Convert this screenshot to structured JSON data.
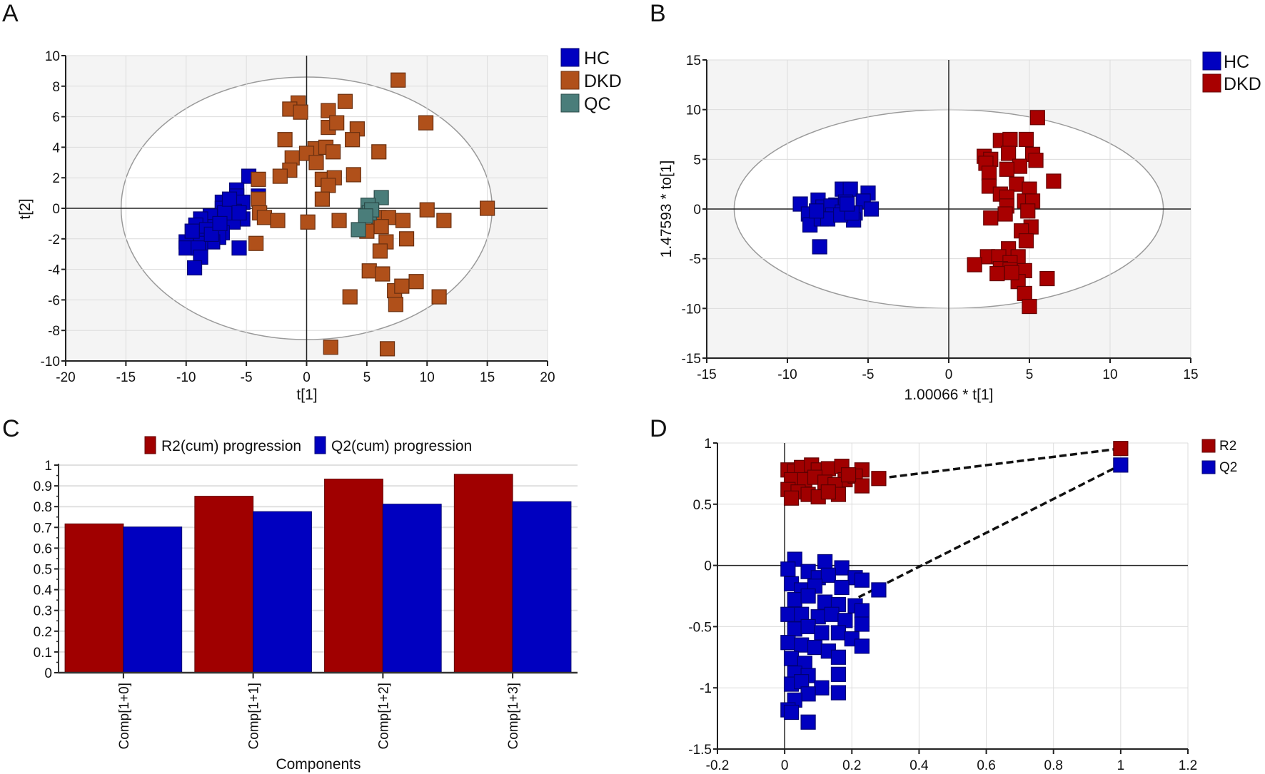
{
  "chart_data": [
    {
      "panel": "A",
      "type": "scatter",
      "xlabel": "t[1]",
      "ylabel": "t[2]",
      "xlim": [
        -20,
        20
      ],
      "ylim": [
        -10,
        10
      ],
      "xticks": [
        -20,
        -15,
        -10,
        -5,
        0,
        5,
        10,
        15,
        20
      ],
      "yticks": [
        -10,
        -8,
        -6,
        -4,
        -2,
        0,
        2,
        4,
        6,
        8,
        10
      ],
      "grid": true,
      "legend": "right",
      "ellipse": {
        "rx": 15.4,
        "ry": 8.6
      },
      "series": [
        {
          "name": "HC",
          "color": "#0000c0",
          "points": [
            [
              -4.8,
              2.1
            ],
            [
              -5.8,
              1.2
            ],
            [
              -5.8,
              0.8
            ],
            [
              -6.5,
              0.3
            ],
            [
              -7,
              0.4
            ],
            [
              -5.3,
              0.4
            ],
            [
              -6,
              -0.2
            ],
            [
              -7,
              0
            ],
            [
              -5.3,
              -0.7
            ],
            [
              -6.1,
              -0.9
            ],
            [
              -7.5,
              -0.6
            ],
            [
              -8,
              -0.5
            ],
            [
              -8.8,
              -0.7
            ],
            [
              -9.2,
              -1.1
            ],
            [
              -7.6,
              -1.2
            ],
            [
              -8.3,
              -1.4
            ],
            [
              -7,
              -1.6
            ],
            [
              -7.3,
              -1.9
            ],
            [
              -8.3,
              -2.1
            ],
            [
              -7.8,
              -2.2
            ],
            [
              -8.8,
              -2.3
            ],
            [
              -10,
              -2.2
            ],
            [
              -10,
              -2.6
            ],
            [
              -9,
              -2.6
            ],
            [
              -8.8,
              -3.2
            ],
            [
              -9.3,
              -3.9
            ],
            [
              -5.6,
              -2.6
            ],
            [
              -4,
              0.8
            ],
            [
              -6.8,
              -0.3
            ],
            [
              -7.9,
              -1.7
            ],
            [
              -9.5,
              -1.5
            ],
            [
              -6.4,
              0.6
            ],
            [
              -5.6,
              -0.3
            ],
            [
              -7.2,
              -1
            ]
          ]
        },
        {
          "name": "DKD",
          "color": "#b0501a",
          "points": [
            [
              7.6,
              8.4
            ],
            [
              -0.7,
              6.9
            ],
            [
              -1.4,
              6.5
            ],
            [
              -0.5,
              6.3
            ],
            [
              3.2,
              7.0
            ],
            [
              1.8,
              6.4
            ],
            [
              1.8,
              5.3
            ],
            [
              2.5,
              5.6
            ],
            [
              4.2,
              5.2
            ],
            [
              9.9,
              5.6
            ],
            [
              -1.8,
              4.5
            ],
            [
              3.8,
              4.5
            ],
            [
              0.7,
              3.9
            ],
            [
              1.6,
              4.0
            ],
            [
              2.2,
              3.7
            ],
            [
              0,
              3.6
            ],
            [
              6,
              3.7
            ],
            [
              -1.2,
              3.3
            ],
            [
              0.8,
              3.0
            ],
            [
              -1.4,
              2.5
            ],
            [
              -2.2,
              2.1
            ],
            [
              -4,
              1.9
            ],
            [
              1.3,
              1.9
            ],
            [
              2.3,
              2
            ],
            [
              1.8,
              1.5
            ],
            [
              3.9,
              2.2
            ],
            [
              1.3,
              0.6
            ],
            [
              -4,
              0.6
            ],
            [
              -3.9,
              -0.3
            ],
            [
              -3.5,
              -0.6
            ],
            [
              -2.4,
              -0.8
            ],
            [
              0.1,
              -0.9
            ],
            [
              2.7,
              -0.8
            ],
            [
              6,
              -0.6
            ],
            [
              6.8,
              -0.6
            ],
            [
              8,
              -0.8
            ],
            [
              10,
              -0.1
            ],
            [
              11.4,
              -0.8
            ],
            [
              15,
              0
            ],
            [
              6.2,
              -1.2
            ],
            [
              5,
              -1.5
            ],
            [
              8.3,
              -2
            ],
            [
              6.6,
              -2.2
            ],
            [
              6.1,
              -2.8
            ],
            [
              -4.2,
              -2.3
            ],
            [
              5.2,
              -4.1
            ],
            [
              6.3,
              -4.3
            ],
            [
              7.3,
              -5.4
            ],
            [
              7.9,
              -5.1
            ],
            [
              9.1,
              -4.8
            ],
            [
              11,
              -5.8
            ],
            [
              3.6,
              -5.8
            ],
            [
              7.4,
              -6.3
            ],
            [
              2,
              -9.1
            ],
            [
              6.7,
              -9.2
            ]
          ]
        },
        {
          "name": "QC",
          "color": "#4a7d7a",
          "points": [
            [
              6.2,
              0.7
            ],
            [
              5.1,
              0.2
            ],
            [
              5.2,
              -0.3
            ],
            [
              5.4,
              -0.1
            ],
            [
              4.9,
              -0.5
            ],
            [
              4.3,
              -1.4
            ]
          ]
        }
      ]
    },
    {
      "panel": "B",
      "type": "scatter",
      "xlabel": "1.00066 * t[1]",
      "ylabel": "1.47593 * to[1]",
      "xlim": [
        -15,
        15
      ],
      "ylim": [
        -15,
        15
      ],
      "xticks": [
        -15,
        -10,
        -5,
        0,
        5,
        10,
        15
      ],
      "yticks": [
        -15,
        -10,
        -5,
        0,
        5,
        10,
        15
      ],
      "grid": true,
      "legend": "right",
      "ellipse": {
        "rx": 13.3,
        "ry": 10
      },
      "series": [
        {
          "name": "HC",
          "color": "#0000c0",
          "points": [
            [
              -9.2,
              0.5
            ],
            [
              -8.1,
              0.9
            ],
            [
              -7.8,
              0.2
            ],
            [
              -7,
              0.4
            ],
            [
              -6.6,
              2
            ],
            [
              -6.1,
              2
            ],
            [
              -5,
              1.6
            ],
            [
              -5.3,
              0.8
            ],
            [
              -6.4,
              0.7
            ],
            [
              -7.3,
              0.3
            ],
            [
              -8.7,
              -0.5
            ],
            [
              -7.2,
              -0.6
            ],
            [
              -6.6,
              -0.3
            ],
            [
              -5.8,
              -0.4
            ],
            [
              -4.8,
              0
            ],
            [
              -5.9,
              -1.1
            ],
            [
              -8.6,
              -1.6
            ],
            [
              -7.9,
              -1
            ],
            [
              -7.5,
              -1
            ],
            [
              -6.7,
              -0.6
            ],
            [
              -8,
              -3.8
            ],
            [
              -6,
              -0.4
            ],
            [
              -8.2,
              -0.2
            ],
            [
              -6.3,
              0.5
            ]
          ]
        },
        {
          "name": "DKD",
          "color": "#a80000",
          "points": [
            [
              5.5,
              9.2
            ],
            [
              3.2,
              6.9
            ],
            [
              3.8,
              7
            ],
            [
              4.8,
              7
            ],
            [
              2.2,
              5.3
            ],
            [
              2.6,
              5
            ],
            [
              2.3,
              4.6
            ],
            [
              3.7,
              5.6
            ],
            [
              5.2,
              5.5
            ],
            [
              5.4,
              4.9
            ],
            [
              4.4,
              4.3
            ],
            [
              3.6,
              4
            ],
            [
              2.5,
              3.6
            ],
            [
              6.5,
              2.8
            ],
            [
              2.5,
              2.3
            ],
            [
              4.2,
              2.5
            ],
            [
              5,
              2
            ],
            [
              3.2,
              1.5
            ],
            [
              3.6,
              1.2
            ],
            [
              4.7,
              0.8
            ],
            [
              5.2,
              0.8
            ],
            [
              3.6,
              0.3
            ],
            [
              4.9,
              -0.2
            ],
            [
              2.6,
              -0.9
            ],
            [
              3.5,
              -0.5
            ],
            [
              5.1,
              -1.8
            ],
            [
              4.5,
              -2.2
            ],
            [
              4.8,
              -3.2
            ],
            [
              3.7,
              -4
            ],
            [
              2.4,
              -4.8
            ],
            [
              3.1,
              -4.8
            ],
            [
              4.3,
              -4.8
            ],
            [
              1.6,
              -5.6
            ],
            [
              3.8,
              -5.4
            ],
            [
              3.2,
              -6
            ],
            [
              3.8,
              -6.1
            ],
            [
              4.7,
              -6.2
            ],
            [
              3,
              -6.5
            ],
            [
              6.1,
              -7
            ],
            [
              4.3,
              -7.3
            ],
            [
              4.7,
              -8.5
            ],
            [
              5,
              -9.8
            ],
            [
              3.9,
              -6.4
            ]
          ]
        }
      ]
    },
    {
      "panel": "C",
      "type": "bar",
      "xlabel": "Components",
      "categories": [
        "Comp[1+0]",
        "Comp[1+1]",
        "Comp[1+2]",
        "Comp[1+3]"
      ],
      "ylim": [
        0,
        1
      ],
      "yticks": [
        0,
        0.1,
        0.2,
        0.3,
        0.4,
        0.5,
        0.6,
        0.7,
        0.8,
        0.9,
        1
      ],
      "grid": true,
      "legend": "top",
      "series": [
        {
          "name": "R2(cum) progression",
          "color": "#a00000",
          "values": [
            0.717,
            0.85,
            0.933,
            0.956
          ]
        },
        {
          "name": "Q2(cum) progression",
          "color": "#0000c0",
          "values": [
            0.702,
            0.776,
            0.812,
            0.824
          ]
        }
      ]
    },
    {
      "panel": "D",
      "type": "scatter",
      "xlim": [
        -0.2,
        1.2
      ],
      "ylim": [
        -1.5,
        1
      ],
      "xticks": [
        -0.2,
        0,
        0.2,
        0.4,
        0.6,
        0.8,
        1,
        1.2
      ],
      "yticks": [
        -1.5,
        -1,
        -0.5,
        0,
        0.5,
        1
      ],
      "grid": true,
      "legend": "right",
      "series": [
        {
          "name": "R2",
          "color": "#a00000",
          "trend": [
            [
              0.28,
              0.71
            ],
            [
              1,
              0.955
            ]
          ],
          "points": [
            [
              0.01,
              0.78
            ],
            [
              0.03,
              0.77
            ],
            [
              0.05,
              0.8
            ],
            [
              0.08,
              0.82
            ],
            [
              0.1,
              0.78
            ],
            [
              0.13,
              0.79
            ],
            [
              0.17,
              0.81
            ],
            [
              0.23,
              0.78
            ],
            [
              0.02,
              0.7
            ],
            [
              0.06,
              0.7
            ],
            [
              0.09,
              0.72
            ],
            [
              0.12,
              0.68
            ],
            [
              0.18,
              0.7
            ],
            [
              0.21,
              0.73
            ],
            [
              0.15,
              0.66
            ],
            [
              0.23,
              0.65
            ],
            [
              0.01,
              0.62
            ],
            [
              0.04,
              0.6
            ],
            [
              0.07,
              0.58
            ],
            [
              0.1,
              0.56
            ],
            [
              0.16,
              0.58
            ],
            [
              0.02,
              0.55
            ],
            [
              0.13,
              0.6
            ],
            [
              0.19,
              0.74
            ],
            [
              0.28,
              0.71
            ],
            [
              1,
              0.955
            ]
          ]
        },
        {
          "name": "Q2",
          "color": "#0000c0",
          "trend": [
            [
              0.22,
              -0.26
            ],
            [
              1,
              0.82
            ]
          ],
          "points": [
            [
              0.03,
              0.05
            ],
            [
              0.12,
              0.03
            ],
            [
              0.17,
              -0.02
            ],
            [
              0.01,
              -0.03
            ],
            [
              0.07,
              -0.05
            ],
            [
              0.1,
              -0.1
            ],
            [
              0.13,
              -0.08
            ],
            [
              0.21,
              -0.1
            ],
            [
              0.23,
              -0.12
            ],
            [
              0.02,
              -0.15
            ],
            [
              0.05,
              -0.2
            ],
            [
              0.09,
              -0.17
            ],
            [
              0.17,
              -0.18
            ],
            [
              0.03,
              -0.28
            ],
            [
              0.07,
              -0.25
            ],
            [
              0.12,
              -0.3
            ],
            [
              0.16,
              -0.32
            ],
            [
              0.21,
              -0.33
            ],
            [
              0.23,
              -0.37
            ],
            [
              0.01,
              -0.4
            ],
            [
              0.05,
              -0.4
            ],
            [
              0.1,
              -0.42
            ],
            [
              0.14,
              -0.4
            ],
            [
              0.18,
              -0.45
            ],
            [
              0.23,
              -0.48
            ],
            [
              0.03,
              -0.52
            ],
            [
              0.07,
              -0.5
            ],
            [
              0.11,
              -0.55
            ],
            [
              0.16,
              -0.55
            ],
            [
              0.2,
              -0.6
            ],
            [
              0.23,
              -0.66
            ],
            [
              0.01,
              -0.63
            ],
            [
              0.05,
              -0.65
            ],
            [
              0.09,
              -0.67
            ],
            [
              0.13,
              -0.7
            ],
            [
              0.02,
              -0.76
            ],
            [
              0.06,
              -0.8
            ],
            [
              0.16,
              -0.75
            ],
            [
              0.03,
              -0.88
            ],
            [
              0.07,
              -0.9
            ],
            [
              0.16,
              -0.89
            ],
            [
              0.02,
              -0.97
            ],
            [
              0.05,
              -0.95
            ],
            [
              0.11,
              -1.0
            ],
            [
              0.16,
              -1.04
            ],
            [
              0.07,
              -1.05
            ],
            [
              0.03,
              -1.1
            ],
            [
              0.01,
              -1.18
            ],
            [
              0.02,
              -1.2
            ],
            [
              0.07,
              -1.28
            ],
            [
              0.28,
              -0.2
            ],
            [
              1,
              0.82
            ]
          ]
        }
      ]
    }
  ]
}
